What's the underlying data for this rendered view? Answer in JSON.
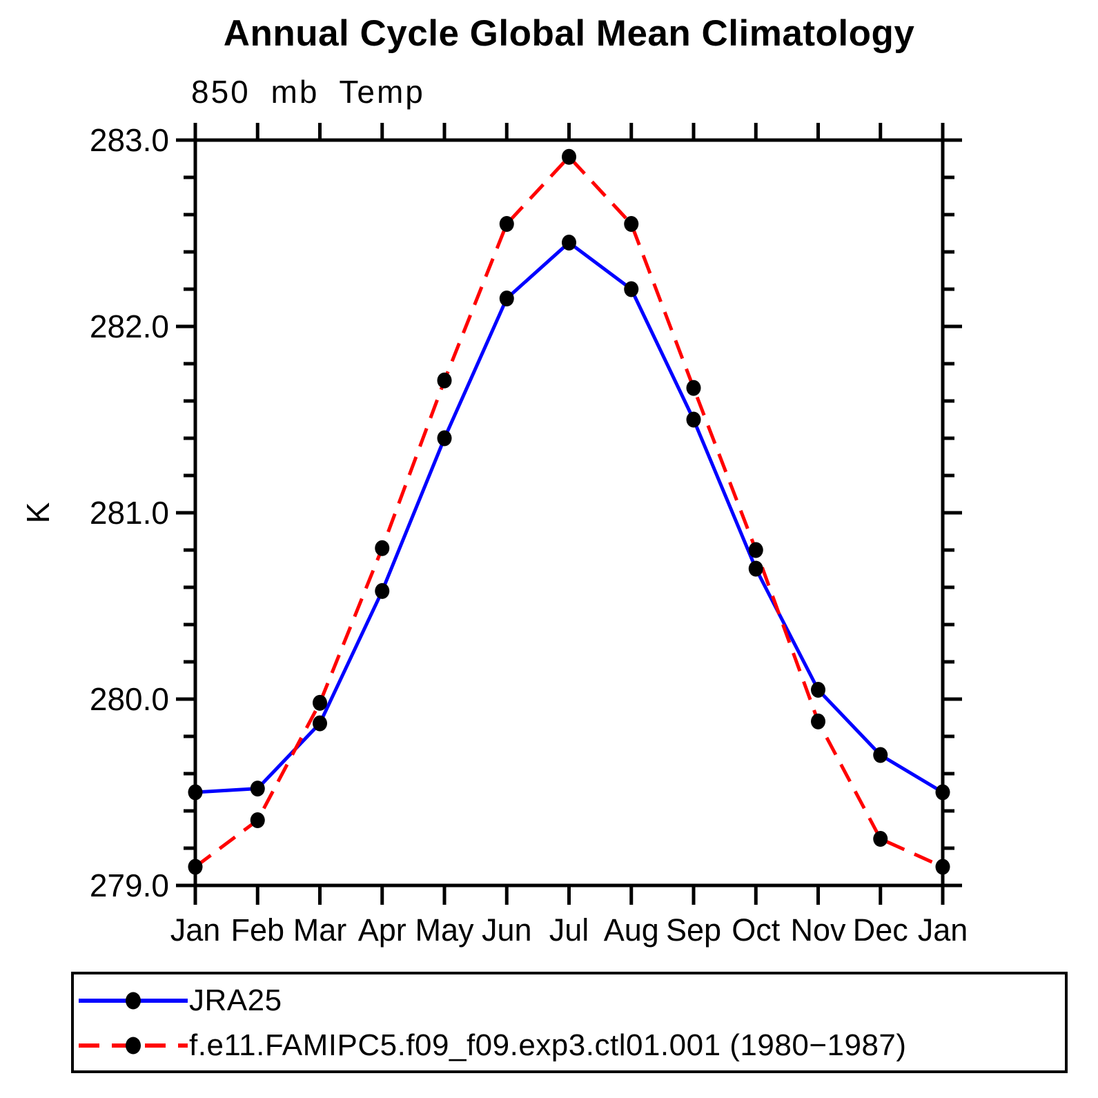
{
  "chart_data": {
    "type": "line",
    "title": "Annual Cycle Global Mean Climatology",
    "subtitle": "850 mb Temp",
    "ylabel": "K",
    "xlabel": "",
    "categories": [
      "Jan",
      "Feb",
      "Mar",
      "Apr",
      "May",
      "Jun",
      "Jul",
      "Aug",
      "Sep",
      "Oct",
      "Nov",
      "Dec",
      "Jan"
    ],
    "ylim": [
      279.0,
      283.0
    ],
    "ytick_major": 1.0,
    "ytick_minor": 0.2,
    "ytick_label_format": "one-decimal",
    "grid": false,
    "axis_box": true,
    "legend_position": "bottom-left-box",
    "series": [
      {
        "name": "JRA25",
        "color": "#0000ff",
        "line_style": "solid",
        "marker": "filled-circle",
        "marker_color": "#000000",
        "values": [
          279.5,
          279.52,
          279.87,
          280.58,
          281.4,
          282.15,
          282.45,
          282.2,
          281.5,
          280.7,
          280.05,
          279.7,
          279.5
        ]
      },
      {
        "name": "f.e11.FAMIPC5.f09_f09.exp3.ctl01.001 (1980−1987)",
        "color": "#ff0000",
        "line_style": "dashed",
        "marker": "filled-circle",
        "marker_color": "#000000",
        "values": [
          279.1,
          279.35,
          279.98,
          280.81,
          281.71,
          282.55,
          282.91,
          282.55,
          281.67,
          280.8,
          279.88,
          279.25,
          279.1
        ]
      }
    ]
  }
}
